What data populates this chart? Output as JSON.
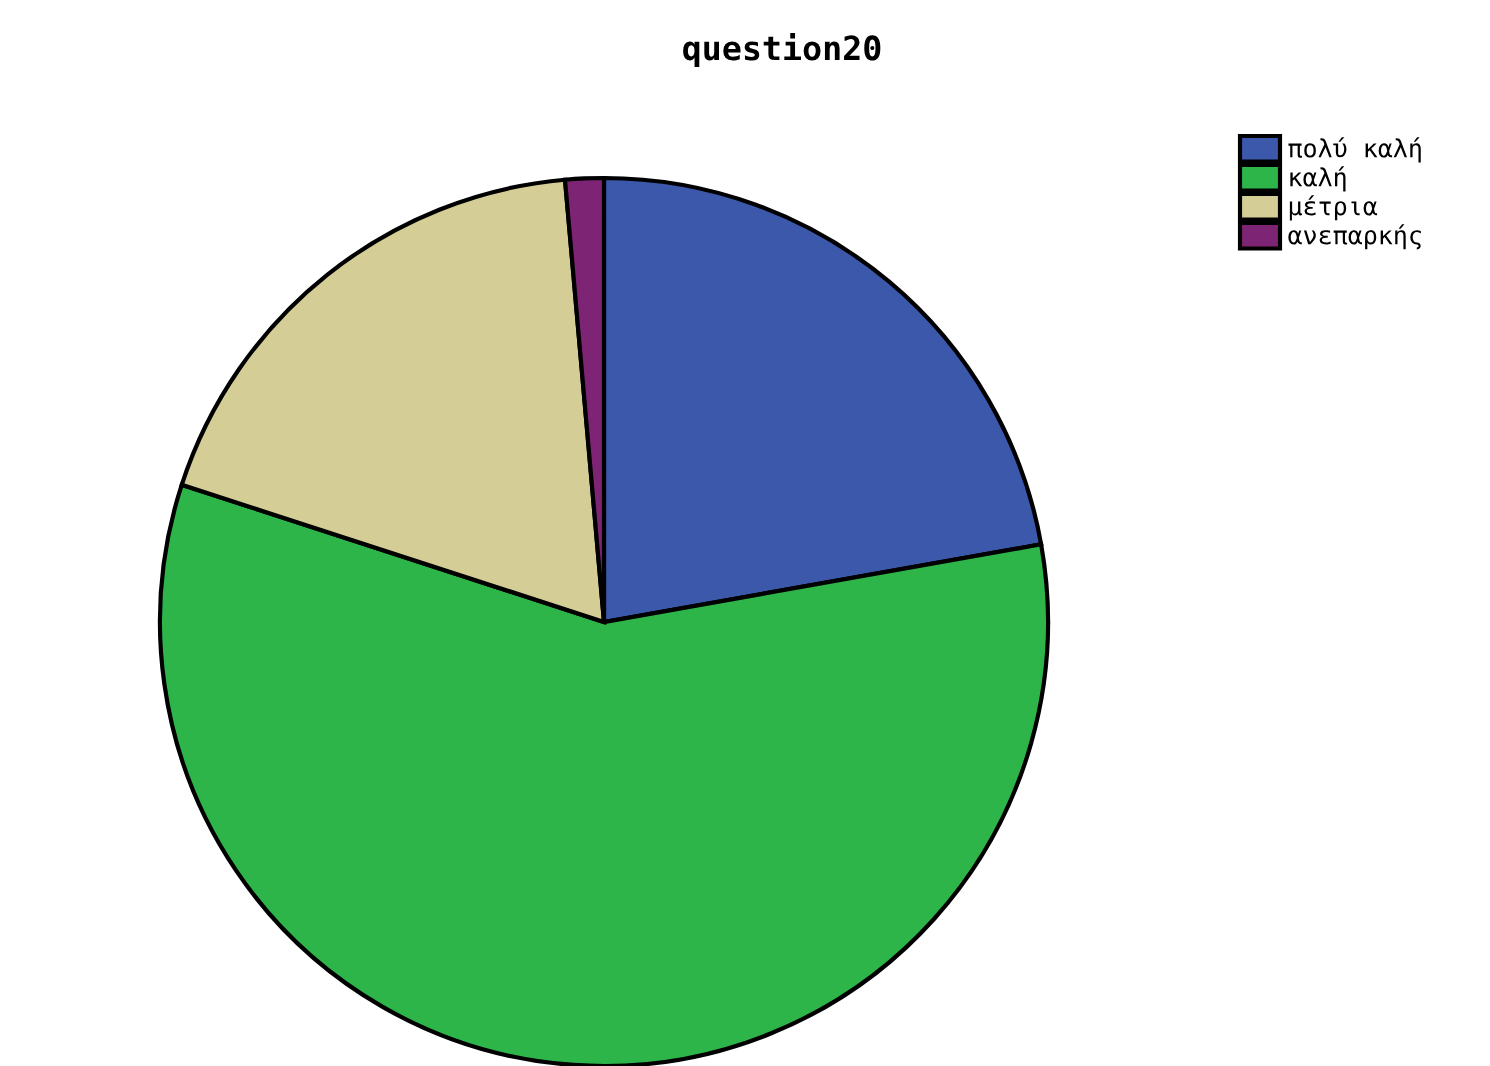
{
  "chart_data": {
    "type": "pie",
    "title": "question20",
    "categories": [
      "πολύ καλή",
      "καλή",
      "μέτρια",
      "ανεπαρκής"
    ],
    "values": [
      22.2,
      57.8,
      18.6,
      1.4
    ],
    "colors": [
      "#3c58ab",
      "#2db54a",
      "#d4cd96",
      "#7e2474"
    ],
    "legend": "top right"
  }
}
